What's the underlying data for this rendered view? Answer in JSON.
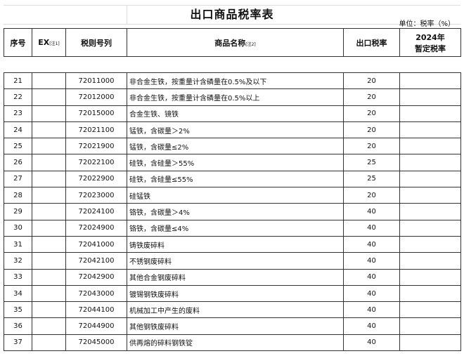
{
  "title": "出口商品税率表",
  "unit": "单位：税率（%）",
  "columns": {
    "seq": "序号",
    "ex": "EX",
    "ex_note": "[注1]",
    "code": "税则号列",
    "name": "商品名称",
    "name_note": "[注2]",
    "rate": "出口税率",
    "temp_line1": "2024年",
    "temp_line2": "暂定税率"
  },
  "rows": [
    {
      "seq": "21",
      "code": "72011000",
      "name": "非合金生铁，按重量计含磷量在0.5%及以下",
      "rate": "20"
    },
    {
      "seq": "22",
      "code": "72012000",
      "name": "非合金生铁，按重量计含磷量在0.5%以上",
      "rate": "20"
    },
    {
      "seq": "23",
      "code": "72015000",
      "name": "合金生铁、镜铁",
      "rate": "20"
    },
    {
      "seq": "24",
      "code": "72021100",
      "name": "锰铁，含碳量＞2%",
      "rate": "20"
    },
    {
      "seq": "25",
      "code": "72021900",
      "name": "锰铁，含碳量≤2%",
      "rate": "20"
    },
    {
      "seq": "26",
      "code": "72022100",
      "name": "硅铁，含硅量＞55%",
      "rate": "25"
    },
    {
      "seq": "27",
      "code": "72022900",
      "name": "硅铁，含硅量≤55%",
      "rate": "25"
    },
    {
      "seq": "28",
      "code": "72023000",
      "name": "硅锰铁",
      "rate": "20"
    },
    {
      "seq": "29",
      "code": "72024100",
      "name": "铬铁，含碳量＞4%",
      "rate": "40"
    },
    {
      "seq": "30",
      "code": "72024900",
      "name": "铬铁，含碳量≤4%",
      "rate": "40"
    },
    {
      "seq": "31",
      "code": "72041000",
      "name": "铸铁废碎料",
      "rate": "40"
    },
    {
      "seq": "32",
      "code": "72042100",
      "name": "不锈钢废碎料",
      "rate": "40"
    },
    {
      "seq": "33",
      "code": "72042900",
      "name": "其他合金钢废碎料",
      "rate": "40"
    },
    {
      "seq": "34",
      "code": "72043000",
      "name": "镀锡钢铁废碎料",
      "rate": "40"
    },
    {
      "seq": "35",
      "code": "72044100",
      "name": "机械加工中产生的废料",
      "rate": "40"
    },
    {
      "seq": "36",
      "code": "72044900",
      "name": "其他钢铁废碎料",
      "rate": "40"
    },
    {
      "seq": "37",
      "code": "72045000",
      "name": "供再熔的碎料钢铁锭",
      "rate": "40"
    }
  ]
}
